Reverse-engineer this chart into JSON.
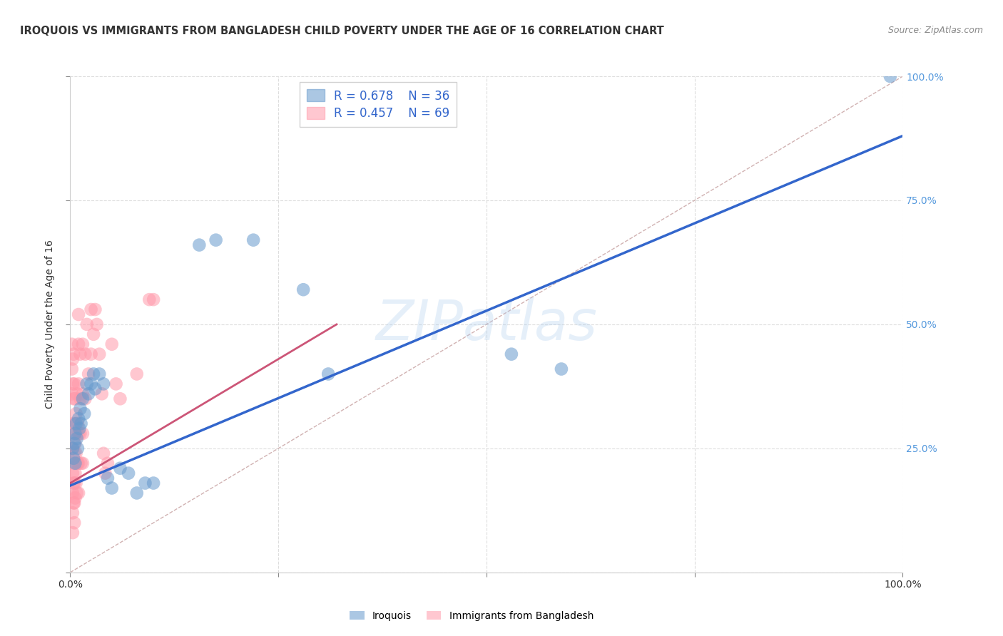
{
  "title": "IROQUOIS VS IMMIGRANTS FROM BANGLADESH CHILD POVERTY UNDER THE AGE OF 16 CORRELATION CHART",
  "source": "Source: ZipAtlas.com",
  "ylabel": "Child Poverty Under the Age of 16",
  "xlim": [
    0,
    1
  ],
  "ylim": [
    0,
    1
  ],
  "iroquois_color": "#6699cc",
  "bangladesh_color": "#ff99aa",
  "iroquois_line_color": "#3366cc",
  "bangladesh_line_color": "#cc5577",
  "diagonal_color": "#ccaaaa",
  "watermark": "ZIPatlas",
  "right_tick_color": "#5599dd",
  "background_color": "#ffffff",
  "grid_color": "#dddddd",
  "iroquois_points": [
    [
      0.003,
      0.25
    ],
    [
      0.004,
      0.23
    ],
    [
      0.005,
      0.26
    ],
    [
      0.006,
      0.22
    ],
    [
      0.006,
      0.28
    ],
    [
      0.007,
      0.3
    ],
    [
      0.008,
      0.27
    ],
    [
      0.009,
      0.25
    ],
    [
      0.01,
      0.31
    ],
    [
      0.011,
      0.29
    ],
    [
      0.012,
      0.33
    ],
    [
      0.013,
      0.3
    ],
    [
      0.015,
      0.35
    ],
    [
      0.017,
      0.32
    ],
    [
      0.02,
      0.38
    ],
    [
      0.022,
      0.36
    ],
    [
      0.025,
      0.38
    ],
    [
      0.028,
      0.4
    ],
    [
      0.03,
      0.37
    ],
    [
      0.035,
      0.4
    ],
    [
      0.04,
      0.38
    ],
    [
      0.045,
      0.19
    ],
    [
      0.05,
      0.17
    ],
    [
      0.06,
      0.21
    ],
    [
      0.07,
      0.2
    ],
    [
      0.08,
      0.16
    ],
    [
      0.09,
      0.18
    ],
    [
      0.1,
      0.18
    ],
    [
      0.155,
      0.66
    ],
    [
      0.175,
      0.67
    ],
    [
      0.22,
      0.67
    ],
    [
      0.28,
      0.57
    ],
    [
      0.31,
      0.4
    ],
    [
      0.53,
      0.44
    ],
    [
      0.59,
      0.41
    ],
    [
      0.985,
      1.0
    ]
  ],
  "bangladesh_points": [
    [
      0.002,
      0.46
    ],
    [
      0.002,
      0.41
    ],
    [
      0.002,
      0.36
    ],
    [
      0.003,
      0.43
    ],
    [
      0.003,
      0.38
    ],
    [
      0.003,
      0.3
    ],
    [
      0.003,
      0.25
    ],
    [
      0.003,
      0.2
    ],
    [
      0.003,
      0.16
    ],
    [
      0.003,
      0.12
    ],
    [
      0.003,
      0.08
    ],
    [
      0.004,
      0.44
    ],
    [
      0.004,
      0.35
    ],
    [
      0.004,
      0.28
    ],
    [
      0.004,
      0.22
    ],
    [
      0.004,
      0.18
    ],
    [
      0.004,
      0.14
    ],
    [
      0.005,
      0.38
    ],
    [
      0.005,
      0.3
    ],
    [
      0.005,
      0.24
    ],
    [
      0.005,
      0.18
    ],
    [
      0.005,
      0.14
    ],
    [
      0.005,
      0.1
    ],
    [
      0.006,
      0.35
    ],
    [
      0.006,
      0.26
    ],
    [
      0.006,
      0.2
    ],
    [
      0.006,
      0.15
    ],
    [
      0.007,
      0.32
    ],
    [
      0.007,
      0.24
    ],
    [
      0.007,
      0.18
    ],
    [
      0.008,
      0.36
    ],
    [
      0.008,
      0.28
    ],
    [
      0.008,
      0.22
    ],
    [
      0.008,
      0.16
    ],
    [
      0.009,
      0.3
    ],
    [
      0.009,
      0.22
    ],
    [
      0.01,
      0.52
    ],
    [
      0.01,
      0.46
    ],
    [
      0.01,
      0.38
    ],
    [
      0.01,
      0.28
    ],
    [
      0.01,
      0.22
    ],
    [
      0.01,
      0.16
    ],
    [
      0.012,
      0.44
    ],
    [
      0.012,
      0.35
    ],
    [
      0.012,
      0.28
    ],
    [
      0.013,
      0.22
    ],
    [
      0.015,
      0.46
    ],
    [
      0.015,
      0.36
    ],
    [
      0.015,
      0.28
    ],
    [
      0.015,
      0.22
    ],
    [
      0.018,
      0.44
    ],
    [
      0.018,
      0.35
    ],
    [
      0.02,
      0.5
    ],
    [
      0.022,
      0.4
    ],
    [
      0.025,
      0.53
    ],
    [
      0.025,
      0.44
    ],
    [
      0.028,
      0.48
    ],
    [
      0.03,
      0.53
    ],
    [
      0.032,
      0.5
    ],
    [
      0.035,
      0.44
    ],
    [
      0.038,
      0.36
    ],
    [
      0.04,
      0.24
    ],
    [
      0.042,
      0.2
    ],
    [
      0.045,
      0.22
    ],
    [
      0.05,
      0.46
    ],
    [
      0.055,
      0.38
    ],
    [
      0.06,
      0.35
    ],
    [
      0.08,
      0.4
    ],
    [
      0.095,
      0.55
    ],
    [
      0.1,
      0.55
    ]
  ],
  "iroquois_line": {
    "x0": 0.0,
    "y0": 0.175,
    "x1": 1.0,
    "y1": 0.88
  },
  "bangladesh_line": {
    "x0": 0.0,
    "y0": 0.18,
    "x1": 0.32,
    "y1": 0.5
  },
  "diagonal_line": {
    "x0": 0.0,
    "y0": 0.0,
    "x1": 1.0,
    "y1": 1.0
  }
}
